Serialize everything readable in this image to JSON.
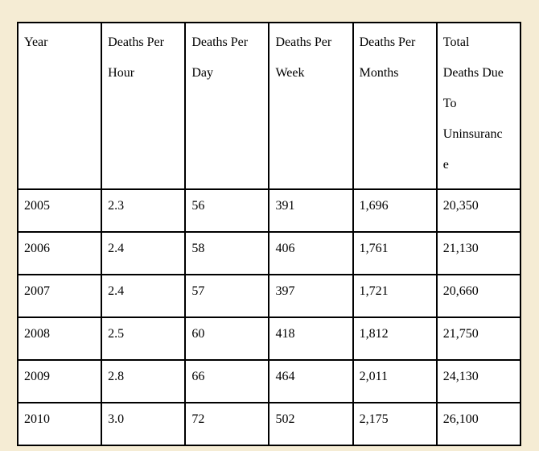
{
  "page": {
    "background_color": "#f5ecd4",
    "table_border_color": "#000000",
    "cell_background_color": "#ffffff",
    "text_color": "#000000"
  },
  "table": {
    "columns": [
      "Year",
      "Deaths Per\nHour",
      "Deaths Per\nDay",
      "Deaths Per\nWeek",
      "Deaths Per\nMonths",
      "Total\nDeaths Due\nTo\nUninsuranc\ne"
    ],
    "rows": [
      [
        "2005",
        "2.3",
        "56",
        "391",
        "1,696",
        "20,350"
      ],
      [
        "2006",
        "2.4",
        "58",
        "406",
        "1,761",
        "21,130"
      ],
      [
        "2007",
        "2.4",
        "57",
        "397",
        "1,721",
        "20,660"
      ],
      [
        "2008",
        "2.5",
        "60",
        "418",
        "1,812",
        "21,750"
      ],
      [
        "2009",
        "2.8",
        "66",
        "464",
        "2,011",
        "24,130"
      ],
      [
        "2010",
        "3.0",
        "72",
        "502",
        "2,175",
        "26,100"
      ]
    ]
  },
  "chart_data": {
    "type": "table",
    "categories": [
      "Year",
      "Deaths Per Hour",
      "Deaths Per Day",
      "Deaths Per Week",
      "Deaths Per Months",
      "Total Deaths Due To Uninsurance"
    ],
    "series": [
      {
        "name": "2005",
        "values": [
          2.3,
          56,
          391,
          1696,
          20350
        ]
      },
      {
        "name": "2006",
        "values": [
          2.4,
          58,
          406,
          1761,
          21130
        ]
      },
      {
        "name": "2007",
        "values": [
          2.4,
          57,
          397,
          1721,
          20660
        ]
      },
      {
        "name": "2008",
        "values": [
          2.5,
          60,
          418,
          1812,
          21750
        ]
      },
      {
        "name": "2009",
        "values": [
          2.8,
          66,
          464,
          2011,
          24130
        ]
      },
      {
        "name": "2010",
        "values": [
          3.0,
          72,
          502,
          2175,
          26100
        ]
      }
    ],
    "title": ""
  }
}
